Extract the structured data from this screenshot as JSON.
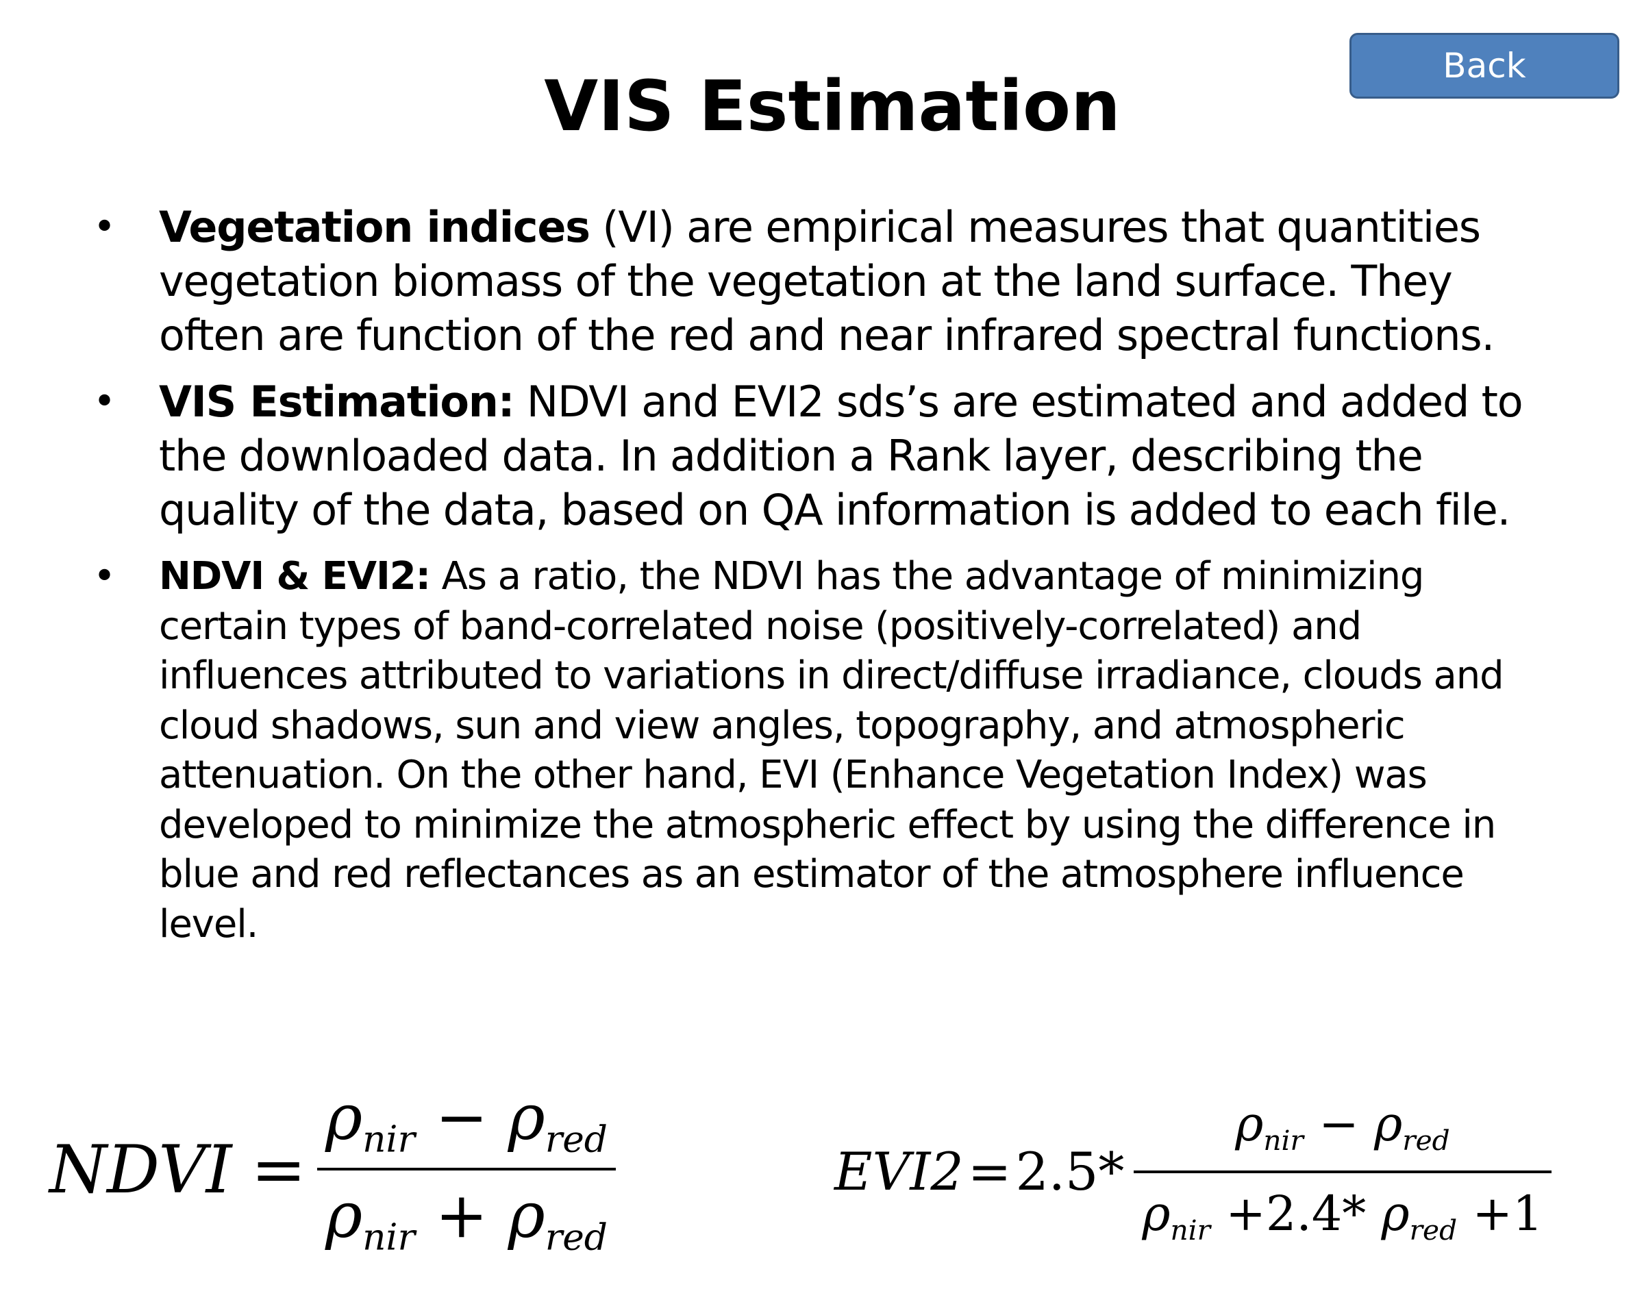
{
  "back_button": {
    "label": "Back"
  },
  "title": "VIS Estimation",
  "bullets": [
    {
      "bold": "Vegetation indices",
      "text": " (VI) are empirical measures that quantities vegetation biomass of the vegetation at the land surface.  They often are function of the red and near infrared spectral functions."
    },
    {
      "bold": "VIS Estimation:",
      "text": " NDVI and EVI2 sds’s are estimated and added to the downloaded data. In addition a Rank layer, describing the quality of the data, based on QA information is added to each file."
    },
    {
      "bold": "NDVI & EVI2:",
      "text": " As a ratio, the NDVI has the advantage of minimizing certain types of band-correlated noise (positively-correlated) and influences attributed to variations in direct/diffuse irradiance, clouds and cloud shadows, sun and view angles, topography, and atmospheric attenuation.  On the other hand, EVI (Enhance Vegetation Index) was developed to minimize the atmospheric effect by using the difference in blue and red reflectances as an estimator of the atmosphere influence level."
    }
  ],
  "bullet_glyph": "•",
  "equations": {
    "rho": "ρ",
    "nir": "nir",
    "red": "red",
    "ndvi": {
      "lhs": "NDVI",
      "eq": "=",
      "minus": "−",
      "plus": "+"
    },
    "evi2": {
      "lhs": "EVI2",
      "eq": "=",
      "coef": "2.5",
      "times": "*",
      "minus": "−",
      "plus": "+",
      "coef2": "2.4",
      "one": "1"
    }
  }
}
